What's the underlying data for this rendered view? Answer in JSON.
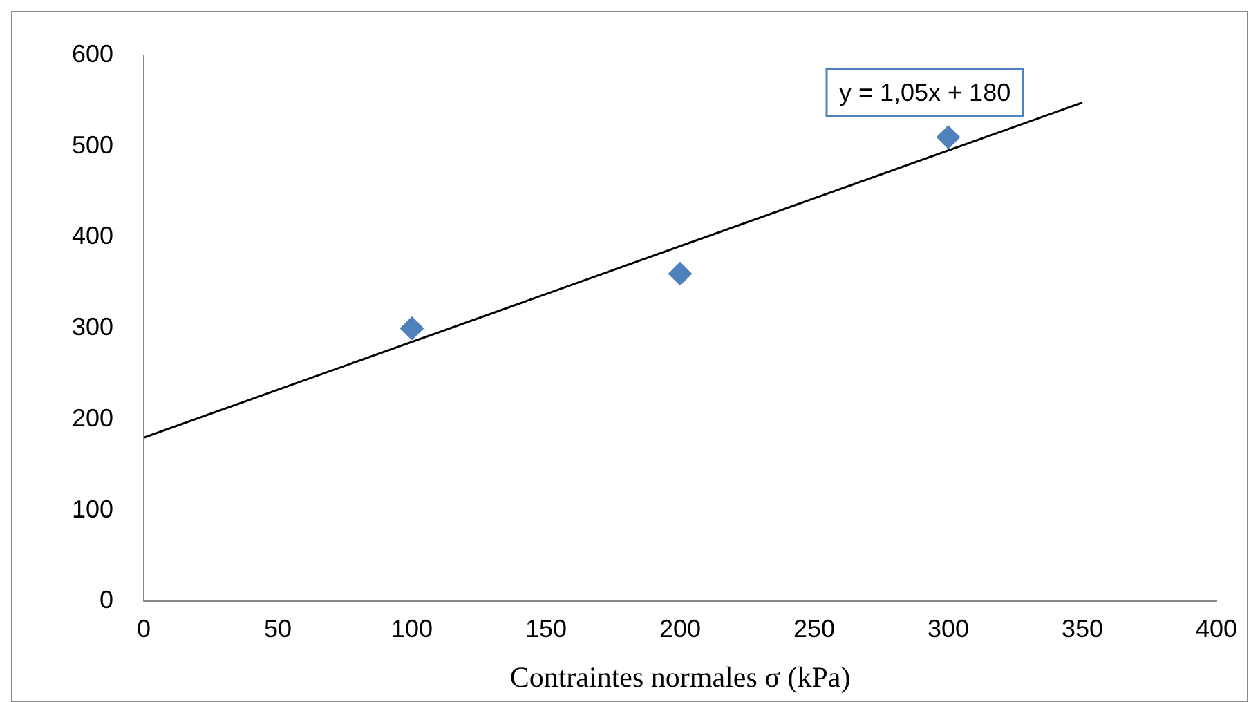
{
  "chart_data": {
    "type": "scatter",
    "xlabel": "Contraintes normales σ (kPa)",
    "xlim": [
      0,
      400
    ],
    "xticks": [
      0,
      50,
      100,
      150,
      200,
      250,
      300,
      350,
      400
    ],
    "ylim": [
      0,
      600
    ],
    "yticks": [
      0,
      100,
      200,
      300,
      400,
      500,
      600
    ],
    "grid": false,
    "legend": false,
    "marker": "diamond",
    "annotations": [
      "y = 1,05x + 180"
    ],
    "series": [
      {
        "color": "#4f81bd",
        "x": [
          100,
          200,
          300
        ],
        "values": [
          300,
          360,
          510
        ]
      },
      {
        "type": "line",
        "color": "#000000",
        "marker": "none",
        "line_style": "solid",
        "x": [
          0,
          350
        ],
        "values": [
          180,
          548
        ]
      }
    ]
  }
}
